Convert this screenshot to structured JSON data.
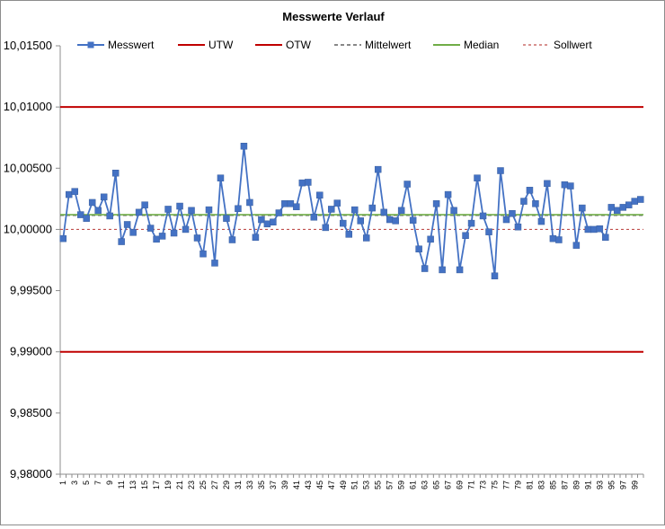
{
  "chart_data": {
    "type": "line",
    "title": "Messwerte Verlauf",
    "xlabel": "",
    "ylabel": "",
    "ylim": [
      9.98,
      10.015
    ],
    "y_ticks": [
      "10,01500",
      "10,01000",
      "10,00500",
      "10,00000",
      "9,99500",
      "9,99000",
      "9,98500",
      "9,98000"
    ],
    "x_tick_labels": [
      "1",
      "3",
      "5",
      "7",
      "9",
      "11",
      "13",
      "15",
      "17",
      "19",
      "21",
      "23",
      "25",
      "27",
      "29",
      "31",
      "33",
      "35",
      "37",
      "39",
      "41",
      "43",
      "45",
      "47",
      "49",
      "51",
      "53",
      "55",
      "57",
      "59",
      "61",
      "63",
      "65",
      "67",
      "69",
      "71",
      "73",
      "75",
      "77",
      "79",
      "81",
      "83",
      "85",
      "87",
      "89",
      "91",
      "93",
      "95",
      "97",
      "99"
    ],
    "x": [
      1,
      2,
      3,
      4,
      5,
      6,
      7,
      8,
      9,
      10,
      11,
      12,
      13,
      14,
      15,
      16,
      17,
      18,
      19,
      20,
      21,
      22,
      23,
      24,
      25,
      26,
      27,
      28,
      29,
      30,
      31,
      32,
      33,
      34,
      35,
      36,
      37,
      38,
      39,
      40,
      41,
      42,
      43,
      44,
      45,
      46,
      47,
      48,
      49,
      50,
      51,
      52,
      53,
      54,
      55,
      56,
      57,
      58,
      59,
      60,
      61,
      62,
      63,
      64,
      65,
      66,
      67,
      68,
      69,
      70,
      71,
      72,
      73,
      74,
      75,
      76,
      77,
      78,
      79,
      80,
      81,
      82,
      83,
      84,
      85,
      86,
      87,
      88,
      89,
      90,
      91,
      92,
      93,
      94,
      95,
      96,
      97,
      98,
      99,
      100
    ],
    "legend_position": "top",
    "grid": false,
    "series": [
      {
        "name": "Messwert",
        "color": "#4472c4",
        "style": "line-marker",
        "values": [
          9.99925,
          10.00285,
          10.0031,
          10.0012,
          10.0009,
          10.0022,
          10.00155,
          10.00265,
          10.0011,
          10.0046,
          9.999,
          10.0004,
          9.99975,
          10.0014,
          10.002,
          10.0001,
          9.9992,
          9.99945,
          10.00165,
          9.9997,
          10.0019,
          10.0,
          10.00155,
          9.9993,
          9.998,
          10.0016,
          9.99725,
          10.0042,
          10.0009,
          9.99915,
          10.0017,
          10.0068,
          10.0022,
          9.99935,
          10.0008,
          10.00045,
          10.0006,
          10.00135,
          10.0021,
          10.0021,
          10.00185,
          10.0038,
          10.00385,
          10.001,
          10.0028,
          10.00015,
          10.00165,
          10.00215,
          10.0005,
          9.9996,
          10.0016,
          10.0007,
          9.9993,
          10.00175,
          10.0049,
          10.0014,
          10.0008,
          10.0007,
          10.00155,
          10.0037,
          10.00075,
          9.9984,
          9.9968,
          9.9992,
          10.0021,
          9.9967,
          10.00285,
          10.00155,
          9.9967,
          9.9995,
          10.0005,
          10.0042,
          10.0011,
          9.9998,
          9.9962,
          10.0048,
          10.0008,
          10.0013,
          10.0002,
          10.0023,
          10.0032,
          10.0021,
          10.00065,
          10.00375,
          9.99925,
          9.99915,
          10.00365,
          10.00355,
          9.9987,
          10.00175,
          10.0,
          10.0,
          10.00005,
          9.99935,
          10.0018,
          10.00155,
          10.0018,
          10.002,
          10.0023,
          10.00245
        ]
      },
      {
        "name": "UTW",
        "color": "#c00000",
        "style": "solid",
        "value": 9.99
      },
      {
        "name": "OTW",
        "color": "#c00000",
        "style": "solid",
        "value": 10.01
      },
      {
        "name": "Mittelwert",
        "color": "#404040",
        "style": "dashed",
        "value": 10.00115
      },
      {
        "name": "Median",
        "color": "#70ad47",
        "style": "solid",
        "value": 10.0012
      },
      {
        "name": "Sollwert",
        "color": "#c0504d",
        "style": "dotted",
        "value": 10.0
      }
    ]
  }
}
